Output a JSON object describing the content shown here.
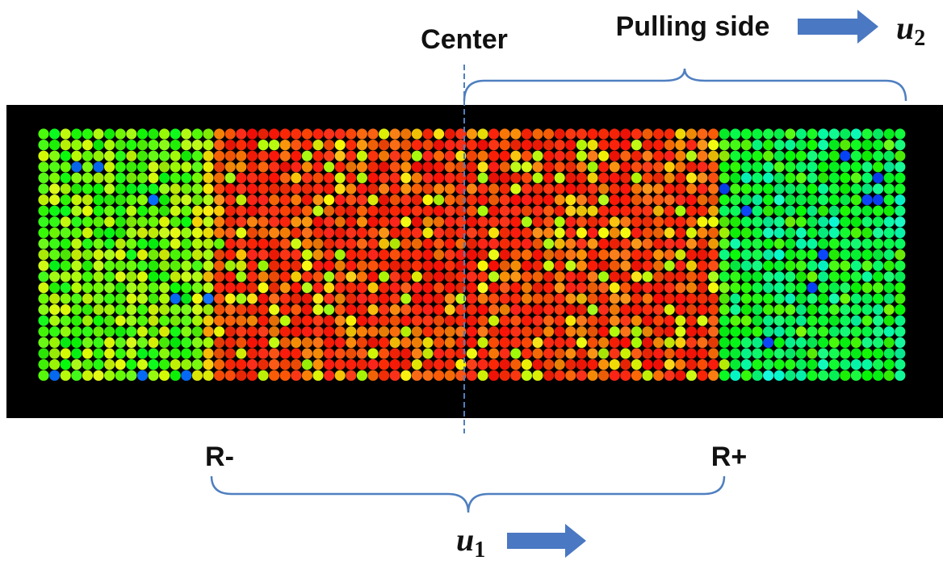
{
  "labels": {
    "center": "Center",
    "pulling_side": "Pulling side",
    "r_minus": "R-",
    "r_plus": "R+",
    "u2": {
      "base": "u",
      "sub": "2"
    },
    "u1": {
      "base": "u",
      "sub": "1"
    }
  }
}
